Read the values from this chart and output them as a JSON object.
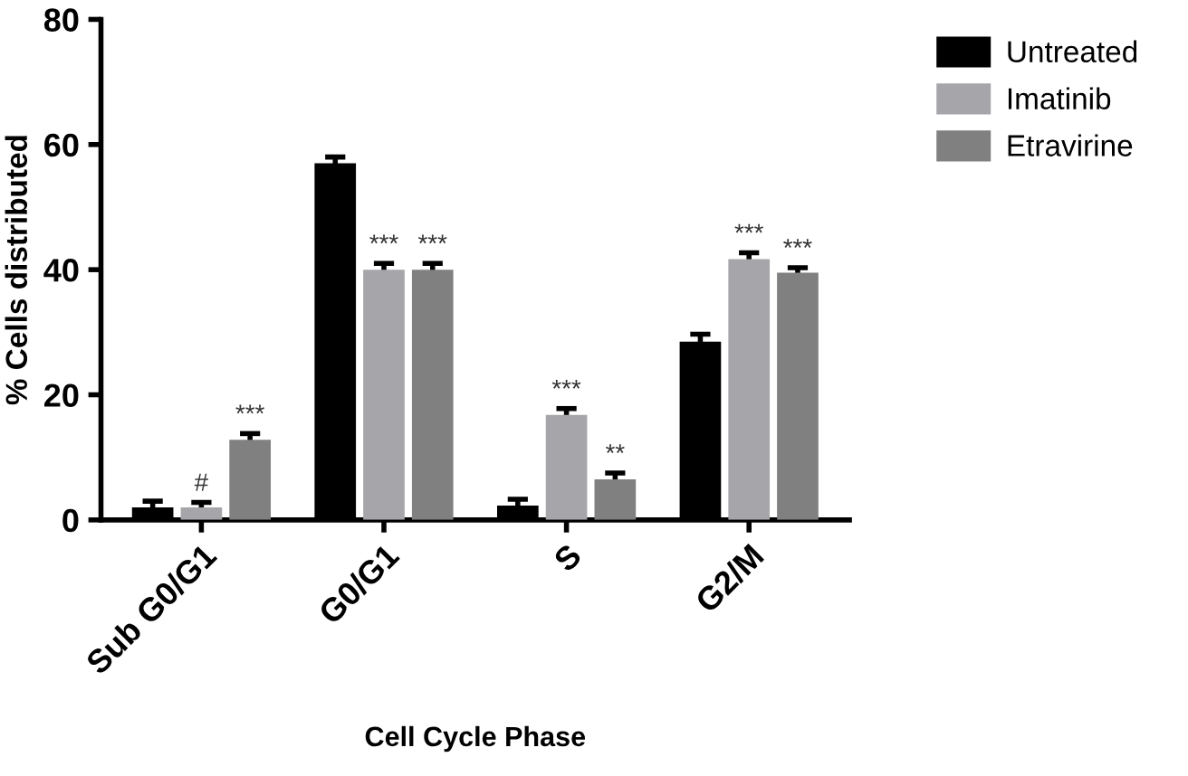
{
  "chart_data": {
    "type": "bar",
    "xlabel": "Cell Cycle Phase",
    "ylabel": "% Cells distributed",
    "categories": [
      "Sub G0/G1",
      "G0/G1",
      "S",
      "G2/M"
    ],
    "series": [
      {
        "name": "Untreated",
        "color": "#000000",
        "values": [
          2,
          57,
          2.3,
          28.5
        ],
        "errors": [
          1,
          1,
          1,
          1.2
        ],
        "value_labels": [
          null,
          null,
          null,
          null
        ]
      },
      {
        "name": "Imatinib",
        "color": "#a6a6aa",
        "values": [
          2,
          40,
          16.8,
          41.7
        ],
        "errors": [
          0.8,
          1,
          1,
          1
        ],
        "value_labels": [
          "#",
          "***",
          "***",
          "***"
        ]
      },
      {
        "name": "Etravirine",
        "color": "#808080",
        "values": [
          12.8,
          40,
          6.5,
          39.5
        ],
        "errors": [
          1,
          1,
          1,
          0.8
        ],
        "value_labels": [
          "***",
          "***",
          "**",
          "***"
        ]
      }
    ],
    "ylim": [
      0,
      80
    ],
    "yticks": [
      0,
      20,
      40,
      60,
      80
    ],
    "legend": "top right",
    "grid": false
  }
}
